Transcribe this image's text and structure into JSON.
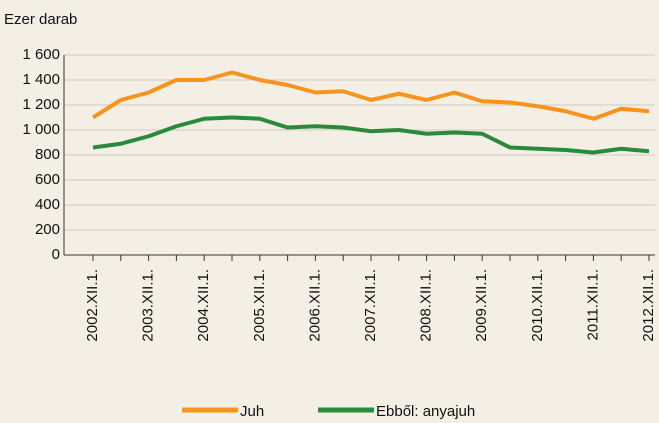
{
  "chart_data": {
    "type": "line",
    "ylabel": "Ezer darab",
    "categories": [
      "2002.XII.1.",
      null,
      "2003.XII.1.",
      null,
      "2004.XII.1.",
      null,
      "2005.XII.1.",
      null,
      "2006.XII.1.",
      null,
      "2007.XII.1.",
      null,
      "2008.XII.1.",
      null,
      "2009.XII.1.",
      null,
      "2010.XII.1.",
      null,
      "2011.XII.1.",
      null,
      "2012.XII.1."
    ],
    "series": [
      {
        "name": "Juh",
        "color": "#f7941d",
        "values": [
          1100,
          1240,
          1300,
          1400,
          1400,
          1460,
          1400,
          1360,
          1300,
          1310,
          1240,
          1290,
          1240,
          1300,
          1230,
          1220,
          1190,
          1150,
          1090,
          1170,
          1150
        ]
      },
      {
        "name": "Ebből: anyajuh",
        "color": "#2a8a3c",
        "values": [
          860,
          890,
          950,
          1030,
          1090,
          1100,
          1090,
          1020,
          1030,
          1020,
          990,
          1000,
          970,
          980,
          970,
          860,
          850,
          840,
          820,
          850,
          830
        ]
      }
    ],
    "ylim": [
      0,
      1600
    ],
    "yticks": [
      0,
      200,
      400,
      600,
      800,
      {
        "value": 1000,
        "label": "1 000"
      },
      {
        "value": 1200,
        "label": "1 200"
      },
      {
        "value": 1400,
        "label": "1 400"
      },
      {
        "value": 1600,
        "label": "1 600"
      }
    ],
    "grid": true,
    "legend": "bottom"
  }
}
